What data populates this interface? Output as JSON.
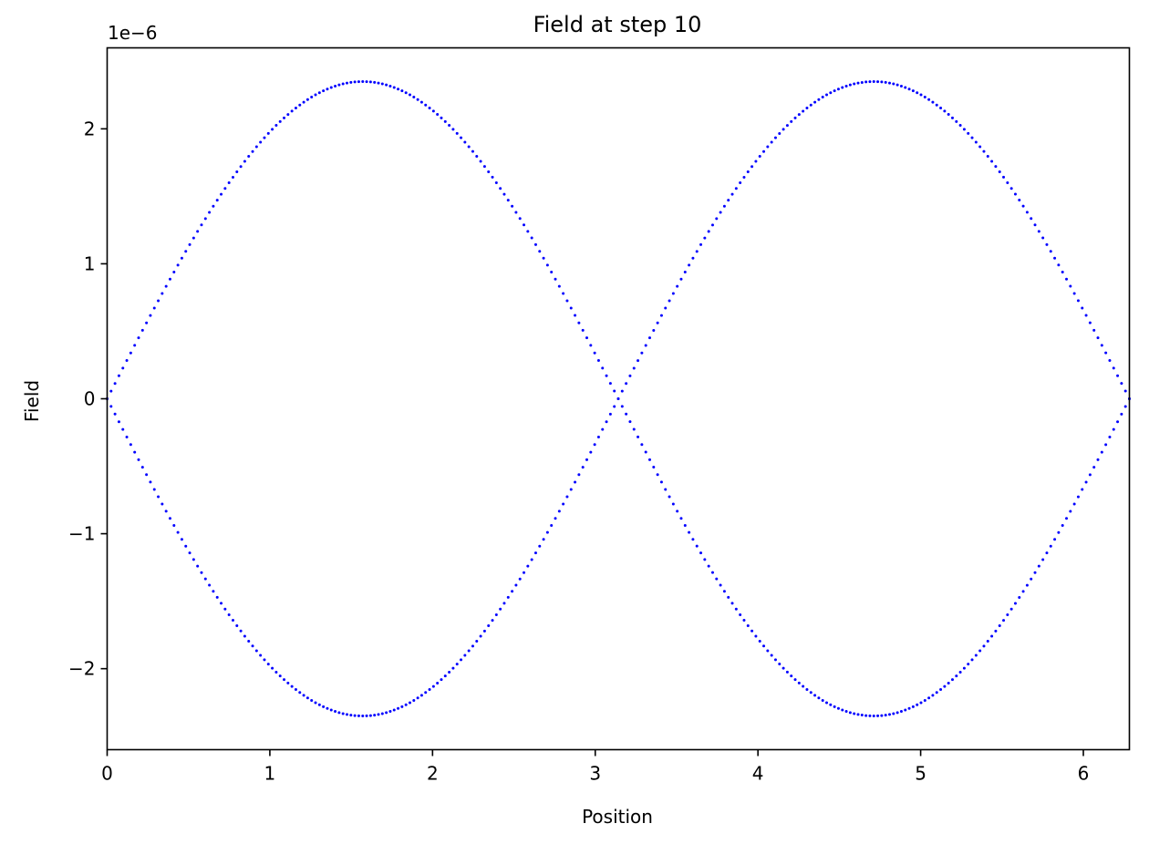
{
  "chart_data": {
    "type": "scatter",
    "title": "Field at step 10",
    "xlabel": "Position",
    "ylabel": "Field",
    "offset_label": "1e−6",
    "xlim": [
      0,
      6.283
    ],
    "ylim": [
      -2.6e-06,
      2.6e-06
    ],
    "xticks": [
      0,
      1,
      2,
      3,
      4,
      5,
      6
    ],
    "xtick_labels": [
      "0",
      "1",
      "2",
      "3",
      "4",
      "5",
      "6"
    ],
    "yticks": [
      -2e-06,
      -1e-06,
      0,
      1e-06,
      2e-06
    ],
    "ytick_labels": [
      "−2",
      "−1",
      "0",
      "1",
      "2"
    ],
    "grid": false,
    "marker_color": "#0000ff",
    "series": [
      {
        "amplitude": 2.35e-06,
        "x": [
          0.0,
          0.126,
          0.251,
          0.377,
          0.503,
          0.628,
          0.754,
          0.88,
          1.005,
          1.131,
          1.257,
          1.382,
          1.508,
          1.634,
          1.759,
          1.885,
          2.011,
          2.136,
          2.262,
          2.388,
          2.513,
          2.639,
          2.765,
          2.89,
          3.016,
          3.142,
          3.267,
          3.393,
          3.519,
          3.644,
          3.77,
          3.896,
          4.021,
          4.147,
          4.273,
          4.398,
          4.524,
          4.65,
          4.775,
          4.901,
          5.027,
          5.152,
          5.278,
          5.404,
          5.529,
          5.655,
          5.781,
          5.906,
          6.032,
          6.158,
          6.283
        ],
        "y": [
          0.0,
          2.95e-07,
          5.84e-07,
          8.64e-07,
          1.129e-06,
          1.381e-06,
          1.605e-06,
          1.81e-06,
          1.983e-06,
          2.126e-06,
          2.235e-06,
          2.306e-06,
          2.347e-06,
          2.349e-06,
          2.313e-06,
          2.235e-06,
          2.126e-06,
          1.983e-06,
          1.81e-06,
          1.605e-06,
          1.381e-06,
          1.129e-06,
          8.64e-07,
          5.84e-07,
          2.95e-07,
          0.0,
          -2.95e-07,
          -5.84e-07,
          -8.64e-07,
          -1.129e-06,
          -1.381e-06,
          -1.605e-06,
          -1.81e-06,
          -1.983e-06,
          -2.126e-06,
          -2.235e-06,
          -2.306e-06,
          -2.347e-06,
          -2.349e-06,
          -2.313e-06,
          -2.235e-06,
          -2.126e-06,
          -1.983e-06,
          -1.81e-06,
          -1.605e-06,
          -1.381e-06,
          -1.129e-06,
          -8.64e-07,
          -5.84e-07,
          -2.95e-07,
          0.0
        ]
      },
      {
        "amplitude": 2.35e-06,
        "x": [
          0.0,
          0.126,
          0.251,
          0.377,
          0.503,
          0.628,
          0.754,
          0.88,
          1.005,
          1.131,
          1.257,
          1.382,
          1.508,
          1.634,
          1.759,
          1.885,
          2.011,
          2.136,
          2.262,
          2.388,
          2.513,
          2.639,
          2.765,
          2.89,
          3.016,
          3.142,
          3.267,
          3.393,
          3.519,
          3.644,
          3.77,
          3.896,
          4.021,
          4.147,
          4.273,
          4.398,
          4.524,
          4.65,
          4.775,
          4.901,
          5.027,
          5.152,
          5.278,
          5.404,
          5.529,
          5.655,
          5.781,
          5.906,
          6.032,
          6.158,
          6.283
        ],
        "y": [
          0.0,
          -2.95e-07,
          -5.84e-07,
          -8.64e-07,
          -1.129e-06,
          -1.381e-06,
          -1.605e-06,
          -1.81e-06,
          -1.983e-06,
          -2.126e-06,
          -2.235e-06,
          -2.306e-06,
          -2.347e-06,
          -2.349e-06,
          -2.313e-06,
          -2.235e-06,
          -2.126e-06,
          -1.983e-06,
          -1.81e-06,
          -1.605e-06,
          -1.381e-06,
          -1.129e-06,
          -8.64e-07,
          -5.84e-07,
          -2.95e-07,
          0.0,
          2.95e-07,
          5.84e-07,
          8.64e-07,
          1.129e-06,
          1.381e-06,
          1.605e-06,
          1.81e-06,
          1.983e-06,
          2.126e-06,
          2.235e-06,
          2.306e-06,
          2.347e-06,
          2.349e-06,
          2.313e-06,
          2.235e-06,
          2.126e-06,
          1.983e-06,
          1.81e-06,
          1.605e-06,
          1.381e-06,
          1.129e-06,
          8.64e-07,
          5.84e-07,
          2.95e-07,
          0.0
        ]
      }
    ]
  }
}
